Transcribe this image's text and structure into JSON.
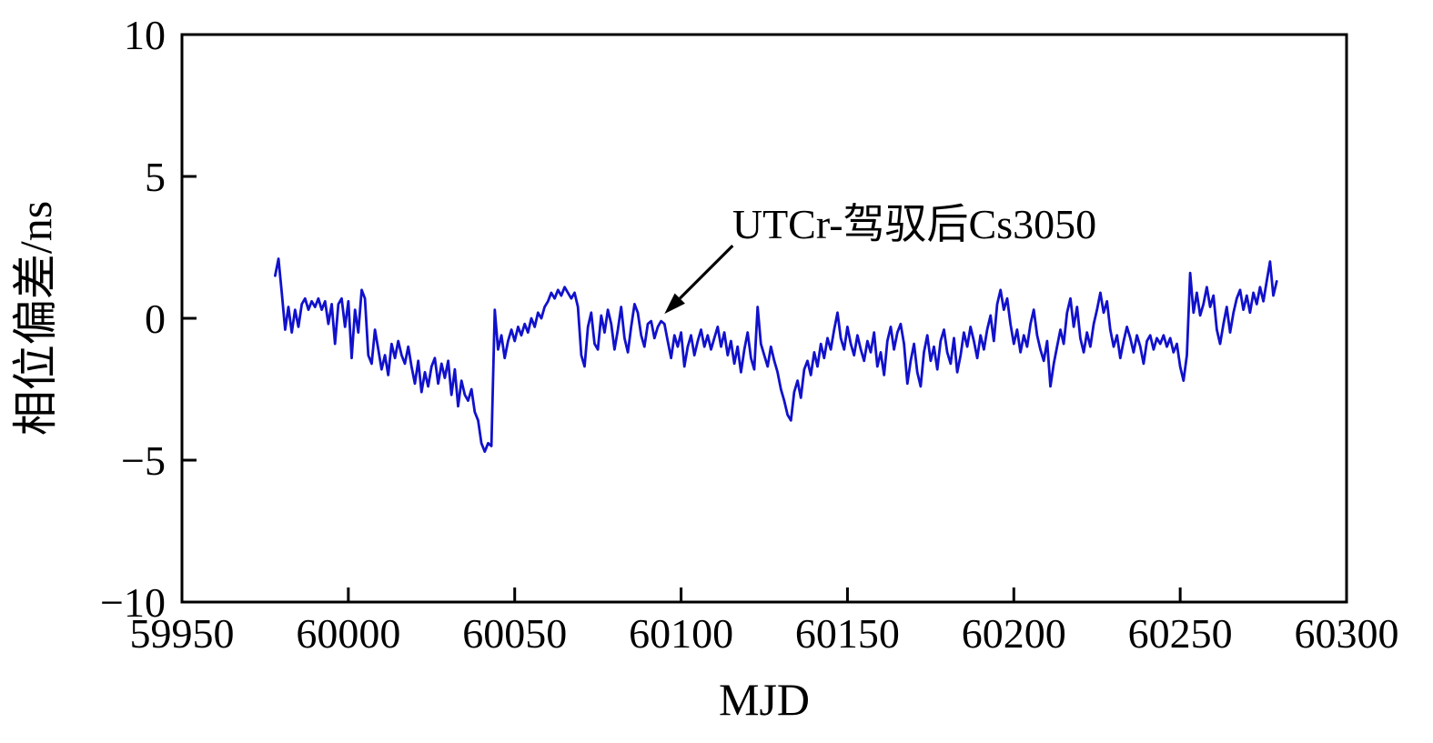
{
  "figure": {
    "background": "#ffffff",
    "axis_color": "#000000",
    "annotation_color": "#000000"
  },
  "chart_data": {
    "type": "line",
    "title": "",
    "xlabel": "MJD",
    "ylabel": "相位偏差/ns",
    "xlim": [
      59950,
      60300
    ],
    "ylim": [
      -10,
      10
    ],
    "xticks": [
      59950,
      60000,
      60050,
      60100,
      60150,
      60200,
      60250,
      60300
    ],
    "yticks": [
      -10,
      -5,
      0,
      5,
      10
    ],
    "grid": false,
    "legend": "none",
    "annotations": [
      {
        "text": "UTCr-驾驭后Cs3050",
        "arrow_tip_x": 60095,
        "arrow_tip_y": -0.1
      }
    ],
    "series": [
      {
        "name": "UTCr-驾驭后Cs3050",
        "color": "#1111cc",
        "x_start": 59978,
        "x_step": 1,
        "values": [
          1.5,
          2.1,
          0.9,
          -0.4,
          0.4,
          -0.5,
          0.3,
          -0.3,
          0.5,
          0.7,
          0.3,
          0.6,
          0.4,
          0.7,
          0.3,
          0.6,
          -0.2,
          0.5,
          -0.9,
          0.5,
          0.7,
          -0.3,
          0.6,
          -1.4,
          0.3,
          -0.5,
          1.0,
          0.7,
          -1.3,
          -1.6,
          -0.4,
          -1.1,
          -1.8,
          -1.3,
          -2.0,
          -0.9,
          -1.4,
          -0.8,
          -1.3,
          -1.6,
          -1.0,
          -1.7,
          -2.3,
          -1.5,
          -2.6,
          -1.9,
          -2.4,
          -1.7,
          -1.4,
          -2.3,
          -1.6,
          -2.1,
          -1.5,
          -2.7,
          -1.8,
          -3.1,
          -2.2,
          -2.7,
          -2.9,
          -2.5,
          -3.3,
          -3.6,
          -4.4,
          -4.7,
          -4.4,
          -4.5,
          0.3,
          -1.1,
          -0.6,
          -1.4,
          -0.8,
          -0.4,
          -0.8,
          -0.3,
          -0.6,
          -0.2,
          -0.5,
          0.0,
          -0.3,
          0.2,
          0.0,
          0.4,
          0.6,
          0.9,
          0.7,
          1.0,
          0.8,
          1.1,
          0.9,
          0.7,
          0.9,
          0.4,
          -1.3,
          -1.7,
          -0.3,
          0.2,
          -0.9,
          -1.1,
          0.1,
          -0.5,
          0.3,
          -0.2,
          -1.1,
          -0.4,
          0.4,
          -0.7,
          -1.2,
          -0.3,
          0.5,
          0.2,
          -0.6,
          -1.0,
          -0.2,
          -0.1,
          -0.7,
          -0.3,
          -0.1,
          -0.2,
          -0.8,
          -1.4,
          -0.6,
          -1.0,
          -0.5,
          -1.7,
          -1.0,
          -0.6,
          -1.3,
          -0.8,
          -0.4,
          -1.0,
          -0.6,
          -1.1,
          -0.7,
          -0.3,
          -1.0,
          -0.5,
          -1.3,
          -0.8,
          -1.6,
          -1.0,
          -1.9,
          -1.1,
          -0.5,
          -1.4,
          -1.8,
          0.4,
          -0.9,
          -1.3,
          -1.7,
          -1.0,
          -1.5,
          -1.9,
          -2.5,
          -2.9,
          -3.4,
          -3.6,
          -2.6,
          -2.2,
          -2.8,
          -1.8,
          -1.5,
          -2.0,
          -1.2,
          -1.7,
          -0.9,
          -1.4,
          -0.7,
          -1.1,
          -0.4,
          0.2,
          -0.7,
          -1.1,
          -0.3,
          -0.9,
          -1.3,
          -0.6,
          -1.1,
          -1.5,
          -0.8,
          -1.2,
          -0.5,
          -1.7,
          -1.2,
          -2.0,
          -0.8,
          -0.3,
          -1.1,
          -0.5,
          -0.2,
          -0.9,
          -2.3,
          -1.5,
          -0.9,
          -1.9,
          -2.4,
          -1.2,
          -0.6,
          -1.5,
          -1.0,
          -1.8,
          -0.8,
          -0.4,
          -1.2,
          -1.6,
          -0.7,
          -1.9,
          -1.3,
          -0.5,
          -1.0,
          -0.3,
          -0.8,
          -1.4,
          -0.6,
          -1.1,
          -0.4,
          0.1,
          -0.8,
          0.5,
          1.0,
          0.3,
          0.7,
          -0.2,
          -0.9,
          -0.4,
          -1.2,
          -0.6,
          -1.0,
          -0.2,
          0.3,
          -0.6,
          -1.1,
          -1.5,
          -0.8,
          -2.4,
          -1.6,
          -1.0,
          -0.4,
          -0.9,
          0.2,
          0.7,
          -0.3,
          0.4,
          -0.7,
          -1.2,
          -0.5,
          -1.0,
          -0.2,
          0.3,
          0.9,
          0.2,
          0.6,
          -0.4,
          -1.0,
          -0.6,
          -1.4,
          -0.8,
          -0.3,
          -0.7,
          -1.2,
          -0.6,
          -1.0,
          -1.6,
          -0.8,
          -0.6,
          -1.1,
          -0.7,
          -0.9,
          -0.6,
          -1.0,
          -0.7,
          -1.2,
          -0.9,
          -1.7,
          -2.2,
          -1.3,
          1.6,
          0.2,
          0.9,
          0.1,
          0.5,
          1.1,
          0.4,
          0.8,
          -0.4,
          -0.9,
          -0.2,
          0.4,
          -0.5,
          0.2,
          0.7,
          1.0,
          0.3,
          0.8,
          0.2,
          0.9,
          0.5,
          1.1,
          0.6,
          1.3,
          2.0,
          0.8,
          1.3
        ]
      }
    ]
  }
}
